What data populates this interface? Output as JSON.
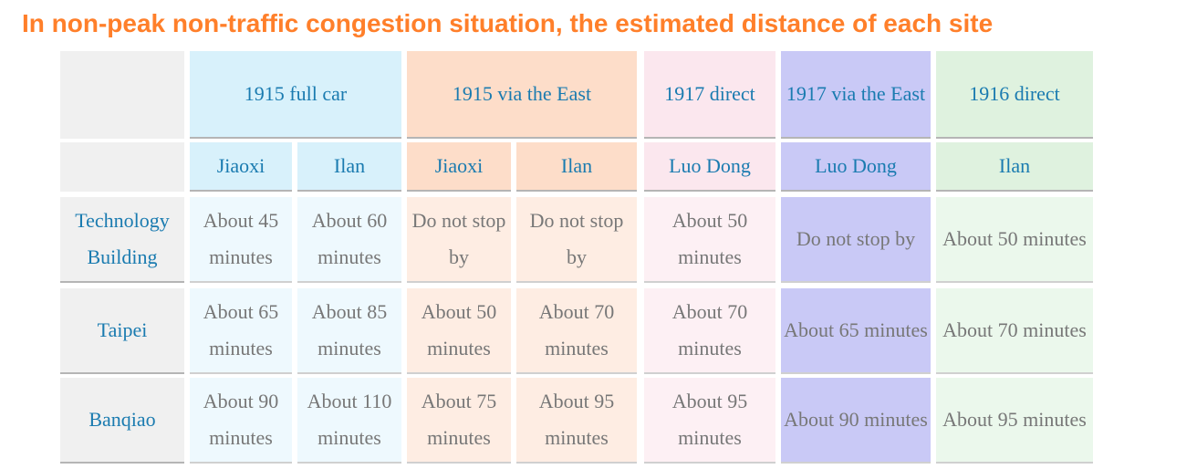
{
  "title": "In non-peak non-traffic congestion situation, the estimated distance of each site",
  "routes": [
    {
      "label": "1915 full car"
    },
    {
      "label": "1915 via the East"
    },
    {
      "label": "1917 direct"
    },
    {
      "label": "1917 via the East"
    },
    {
      "label": "1916 direct"
    }
  ],
  "stops": [
    "Jiaoxi",
    "Ilan",
    "Jiaoxi",
    "Ilan",
    "Luo Dong",
    "Luo Dong",
    "Ilan"
  ],
  "rows": [
    {
      "site": "Technology Building",
      "times": [
        "About 45 minutes",
        "About 60 minutes",
        "Do not stop by",
        "Do not stop by",
        "About 50 minutes",
        "Do not stop by",
        "About 50 minutes"
      ]
    },
    {
      "site": "Taipei",
      "times": [
        "About 65 minutes",
        "About 85 minutes",
        "About 50 minutes",
        "About 70 minutes",
        "About 70 minutes",
        "About 65 minutes",
        "About 70 minutes"
      ]
    },
    {
      "site": "Banqiao",
      "times": [
        "About 90 minutes",
        "About 110 minutes",
        "About 75 minutes",
        "About 95 minutes",
        "About 95 minutes",
        "About 90 minutes",
        "About 95 minutes"
      ]
    }
  ],
  "colors": {
    "title": "#ff7f2a",
    "header_text": "#1a7bb0",
    "body_text": "#777777"
  }
}
